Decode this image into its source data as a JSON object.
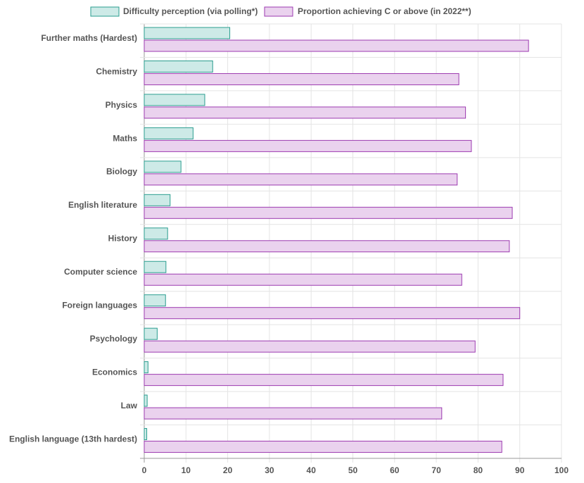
{
  "chart_data": {
    "type": "bar",
    "orientation": "horizontal",
    "title": "",
    "xlabel": "",
    "ylabel": "",
    "xlim": [
      0,
      100
    ],
    "x_ticks": [
      "0",
      "10",
      "20",
      "30",
      "40",
      "50",
      "60",
      "70",
      "80",
      "90",
      "100"
    ],
    "grid": true,
    "legend_position": "top",
    "categories": [
      "Further maths (Hardest)",
      "Chemistry",
      "Physics",
      "Maths",
      "Biology",
      "English literature",
      "History",
      "Computer science",
      "Foreign languages",
      "Psychology",
      "Economics",
      "Law",
      "English language (13th hardest)"
    ],
    "series": [
      {
        "name": "Difficulty perception (via polling*)",
        "fill": "#cdeae7",
        "stroke": "#2a9d8f",
        "values": [
          20.5,
          16.4,
          14.5,
          11.7,
          8.8,
          6.2,
          5.6,
          5.2,
          5.1,
          3.1,
          0.9,
          0.7,
          0.6
        ]
      },
      {
        "name": "Proportion achieving C or above (in 2022**)",
        "fill": "#ead2ee",
        "stroke": "#9c3ab0",
        "values": [
          92.1,
          75.4,
          77.0,
          78.4,
          75.0,
          88.2,
          87.5,
          76.1,
          90.0,
          79.3,
          86.0,
          71.3,
          85.7
        ]
      }
    ]
  }
}
